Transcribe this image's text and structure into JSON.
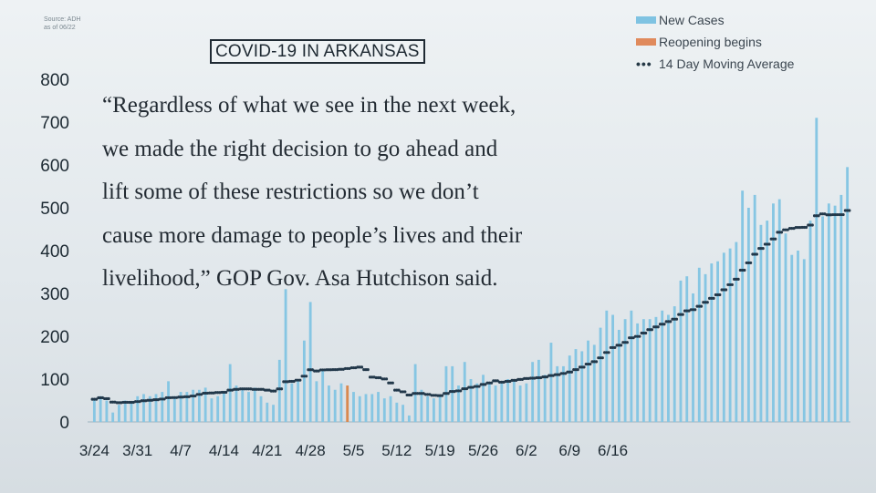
{
  "source_line1": "Source: ADH",
  "source_line2": "as of 06/22",
  "title": "COVID-19 IN ARKANSAS",
  "legend": {
    "new_cases": "New Cases",
    "reopening": "Reopening begins",
    "moving_avg": "14 Day Moving Average"
  },
  "quote": [
    "“Regardless of what we see in the next week,",
    "we made the right decision to go ahead and",
    "lift some of these restrictions so we don’t",
    "cause more damage to people’s lives and their",
    "livelihood,” GOP Gov. Asa Hutchison said."
  ],
  "colors": {
    "bar": "#86c6e3",
    "reopen_bar": "#d9894f",
    "avg_line": "#22384a",
    "axis_text": "#1d2a33"
  },
  "chart_data": {
    "type": "bar",
    "y_ticks": [
      0,
      100,
      200,
      300,
      400,
      500,
      600,
      700,
      800
    ],
    "ylim": [
      0,
      800
    ],
    "x_tick_labels": [
      "3/24",
      "3/31",
      "4/7",
      "4/14",
      "4/21",
      "4/28",
      "5/5",
      "5/12",
      "5/19",
      "5/26",
      "6/2",
      "6/9",
      "6/16"
    ],
    "start_date": "3/24",
    "reopen_date": "5/4",
    "series": [
      {
        "name": "New Cases",
        "values": [
          53,
          60,
          50,
          22,
          40,
          50,
          45,
          60,
          65,
          60,
          65,
          70,
          95,
          60,
          70,
          70,
          75,
          75,
          80,
          55,
          60,
          70,
          135,
          85,
          80,
          70,
          80,
          60,
          45,
          40,
          145,
          310,
          90,
          95,
          190,
          280,
          95,
          120,
          85,
          75,
          90,
          85,
          70,
          60,
          65,
          65,
          70,
          55,
          60,
          45,
          40,
          15,
          135,
          75,
          60,
          55,
          60,
          130,
          130,
          85,
          140,
          100,
          90,
          110,
          90,
          85,
          90,
          100,
          95,
          85,
          90,
          140,
          145,
          110,
          185,
          130,
          130,
          155,
          170,
          165,
          190,
          180,
          220,
          260,
          250,
          215,
          240,
          260,
          230,
          240,
          240,
          245,
          260,
          250,
          270,
          330,
          340,
          300,
          360,
          345,
          370,
          375,
          395,
          405,
          420,
          540,
          500,
          530,
          460,
          470,
          510,
          520,
          440,
          390,
          400,
          380,
          470,
          710,
          480,
          510,
          505,
          530,
          595
        ],
        "values_note_ignore": null
      },
      {
        "name": "14 Day Moving Average"
      }
    ]
  }
}
